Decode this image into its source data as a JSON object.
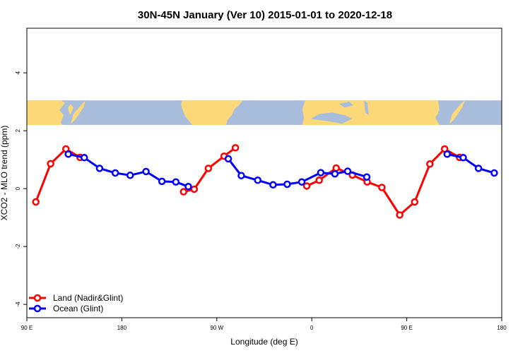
{
  "chart_data": {
    "type": "line",
    "title": "30N-45N January (Ver 10)   2015-01-01 to 2020-12-18",
    "xlabel": "Longitude (deg E)",
    "ylabel": "XCO2 - MLO trend (ppm)",
    "xlim": [
      90,
      540
    ],
    "ylim": [
      -4.46,
      5.54
    ],
    "x_ticks": [
      90,
      180,
      270,
      360,
      450,
      540
    ],
    "x_tick_labels": [
      "90 E",
      "180",
      "90 W",
      "0",
      "90 E",
      "180"
    ],
    "y_ticks": [
      -4,
      -2,
      0,
      2,
      4
    ],
    "y_tick_labels": [
      "-4",
      "-2",
      "0",
      "2",
      "4"
    ],
    "grid": false,
    "legend_position": "bottom-left",
    "map_strip": {
      "ylim": [
        2.2,
        3.05
      ],
      "land_color": "#FDD878",
      "ocean_color": "#A7BDDB"
    },
    "series": [
      {
        "name": "Land (Nadir&Glint)",
        "color": "#FF0000",
        "segments": [
          {
            "x": [
              98.5,
              112.5,
              127.0,
              140.4
            ],
            "y": [
              -0.46,
              0.86,
              1.37,
              1.08
            ]
          },
          {
            "x": [
              238.5,
              248.6,
              262.0,
              276.9,
              287.6
            ],
            "y": [
              -0.11,
              -0.02,
              0.7,
              1.12,
              1.41
            ]
          },
          {
            "x": [
              355.2,
              367.0,
              383.1,
              398.5,
              412.5,
              426.4,
              443.3,
              457.5,
              471.9,
              485.9,
              500.0
            ],
            "y": [
              0.09,
              0.29,
              0.71,
              0.47,
              0.23,
              0.04,
              -0.91,
              -0.46,
              0.85,
              1.37,
              1.08
            ]
          }
        ]
      },
      {
        "name": "Ocean (Glint)",
        "color": "#0000FF",
        "segments": [
          {
            "x": [
              129.3,
              144.4,
              158.9,
              173.8,
              187.9,
              202.9,
              218.0,
              231.2,
              243.0
            ],
            "y": [
              1.19,
              1.07,
              0.7,
              0.54,
              0.46,
              0.59,
              0.25,
              0.23,
              0.07
            ]
          },
          {
            "x": [
              280.9,
              293.2,
              308.8,
              323.3,
              336.7,
              350.5,
              368.5,
              381.9,
              394.0,
              412.1
            ],
            "y": [
              1.03,
              0.45,
              0.29,
              0.13,
              0.15,
              0.23,
              0.55,
              0.51,
              0.6,
              0.4
            ]
          },
          {
            "x": [
              488.3,
              503.5,
              518.0,
              532.9
            ],
            "y": [
              1.19,
              1.07,
              0.7,
              0.54
            ]
          }
        ]
      }
    ]
  }
}
